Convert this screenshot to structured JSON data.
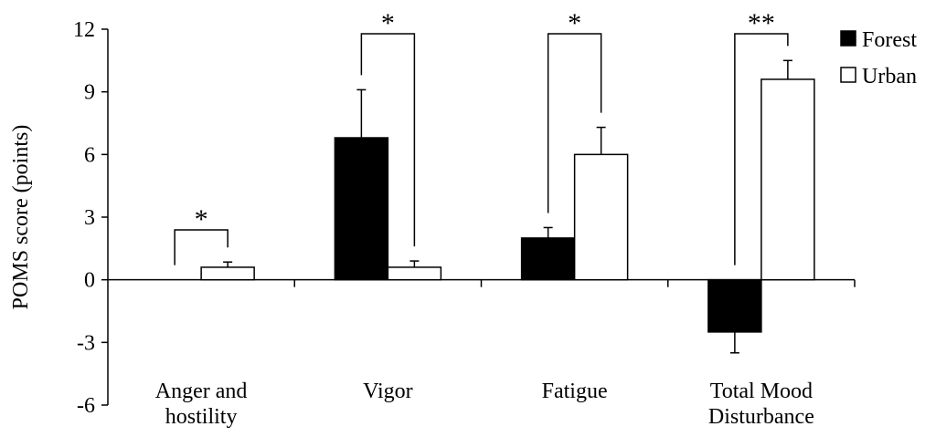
{
  "chart_data": {
    "type": "bar",
    "title": "",
    "xlabel": "",
    "ylabel": "POMS score (points)",
    "ylim": [
      -6,
      12
    ],
    "yticks": [
      "12",
      "9",
      "6",
      "3",
      "0",
      "-3",
      "-6"
    ],
    "ytick_values": [
      12,
      9,
      6,
      3,
      0,
      -3,
      -6
    ],
    "categories": [
      [
        "Anger and",
        "hostility"
      ],
      [
        "Vigor"
      ],
      [
        "Fatigue"
      ],
      [
        "Total Mood",
        "Disturbance"
      ]
    ],
    "series": [
      {
        "name": "Forest",
        "color": "#000000",
        "values": [
          0,
          6.8,
          2.0,
          -2.5
        ],
        "errors": [
          0,
          2.3,
          0.5,
          1.0
        ]
      },
      {
        "name": "Urban",
        "color": "#ffffff",
        "values": [
          0.6,
          0.6,
          6.0,
          9.6
        ],
        "errors": [
          0.25,
          0.3,
          1.3,
          0.9
        ]
      }
    ],
    "significance": [
      "*",
      "*",
      "*",
      "**"
    ],
    "legend_position": "top-right",
    "grid": false
  }
}
